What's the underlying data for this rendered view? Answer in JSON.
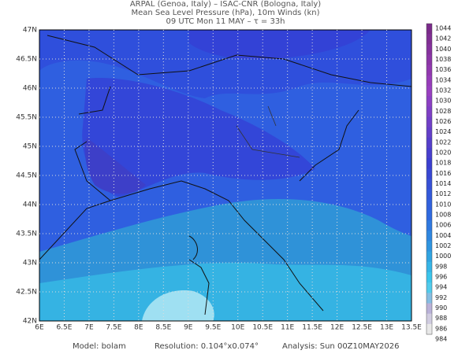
{
  "header": {
    "lines": [
      "ARPAL (Genoa, Italy)  –  ISAC-CNR (Bologna, Italy)",
      "Mean Sea Level Pressure (hPa), 10m Winds (kn)",
      "09 UTC Mon 11 MAY  –  τ = 33h"
    ]
  },
  "map": {
    "lon_labels": [
      "6E",
      "6.5E",
      "7E",
      "7.5E",
      "8E",
      "8.5E",
      "9E",
      "9.5E",
      "10E",
      "10.5E",
      "11E",
      "11.5E",
      "12E",
      "12.5E",
      "13E",
      "13.5E"
    ],
    "lat_labels": [
      "47N",
      "46.5N",
      "46N",
      "45.5N",
      "45N",
      "44.5N",
      "44N",
      "43.5N",
      "43N",
      "42.5N",
      "42N"
    ]
  },
  "colorbar": {
    "labels": [
      1044,
      1042,
      1040,
      1038,
      1036,
      1034,
      1032,
      1030,
      1028,
      1026,
      1024,
      1022,
      1020,
      1018,
      1016,
      1014,
      1012,
      1010,
      1008,
      1006,
      1004,
      1002,
      1000,
      998,
      996,
      994,
      992,
      990,
      988,
      986,
      984
    ]
  },
  "footer": {
    "model": "Model: bolam",
    "resolution": "Resolution: 0.104°x0.074°",
    "analysis": "Analysis: Sun 00Z10MAY2026"
  }
}
